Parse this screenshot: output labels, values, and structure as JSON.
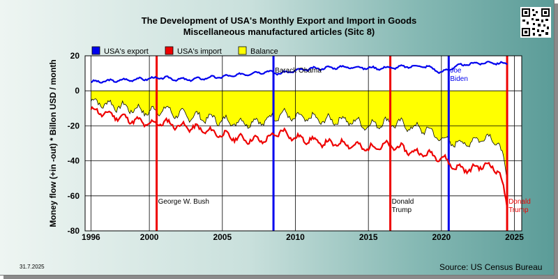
{
  "page": {
    "title_line1": "The Development of USA's Monthly Export and Import in Goods",
    "title_line2": "Miscellaneous manufactured articles (Sitc 8)",
    "date_stamp": "31.7.2025",
    "source": "Source: US Census Bureau",
    "qr_icon": "qr-code-icon"
  },
  "chart_data": {
    "type": "line",
    "ylabel": "Money flow (+in -out) * Billon USD / month",
    "xlabel": "",
    "xlim": [
      1995.6,
      2025.5
    ],
    "ylim": [
      -80,
      20
    ],
    "y_ticks": [
      20,
      0,
      -20,
      -40,
      -60,
      -80
    ],
    "x_ticks": [
      1996,
      2000,
      2005,
      2010,
      2015,
      2020,
      2025
    ],
    "grid": true,
    "legend_position": "top-left",
    "legend": [
      {
        "label": "USA's export",
        "color": "#0000ee"
      },
      {
        "label": "USA's import",
        "color": "#ee0000"
      },
      {
        "label": "Balance",
        "color": "#ffff00"
      }
    ],
    "events": [
      {
        "x": 2000.5,
        "label": "George W. Bush",
        "color": "#ee0000",
        "text_color": "#000000"
      },
      {
        "x": 2008.5,
        "label": "Barack Obama",
        "color": "#0000ee",
        "text_color": "#000000"
      },
      {
        "x": 2016.5,
        "label": "Donald Trump",
        "color": "#ee0000",
        "text_color": "#000000"
      },
      {
        "x": 2020.5,
        "label": "Joe Biden",
        "color": "#0000ee",
        "text_color": "#0000ee"
      },
      {
        "x": 2024.5,
        "label": "Donald Trump",
        "color": "#ee0000",
        "text_color": "#ee0000"
      }
    ],
    "series": [
      {
        "name": "USA's export",
        "color": "#0000ee",
        "x": [
          1996,
          1997,
          1998,
          1999,
          2000,
          2001,
          2002,
          2003,
          2004,
          2005,
          2006,
          2007,
          2008,
          2009,
          2010,
          2011,
          2012,
          2013,
          2014,
          2015,
          2016,
          2017,
          2018,
          2019,
          2020,
          2021,
          2022,
          2023,
          2024,
          2024.5
        ],
        "values": [
          5,
          5.5,
          6,
          6.5,
          7,
          7.5,
          6.5,
          6.5,
          7.5,
          8,
          9,
          10,
          11,
          10,
          11.5,
          12.5,
          13,
          13.5,
          13.5,
          13,
          13,
          13.5,
          14,
          14,
          10.5,
          14,
          15.5,
          16,
          16,
          15
        ]
      },
      {
        "name": "USA's import",
        "color": "#ee0000",
        "x": [
          1996,
          1997,
          1998,
          1999,
          2000,
          2001,
          2002,
          2003,
          2004,
          2005,
          2006,
          2007,
          2008,
          2009,
          2010,
          2011,
          2012,
          2013,
          2014,
          2015,
          2016,
          2017,
          2018,
          2019,
          2020,
          2021,
          2022,
          2023,
          2024,
          2024.5
        ],
        "values": [
          -11,
          -13,
          -15,
          -17,
          -19,
          -18,
          -20,
          -21,
          -23,
          -25,
          -27,
          -28,
          -28,
          -23,
          -27,
          -28,
          -30,
          -30,
          -31,
          -33,
          -31,
          -32,
          -35,
          -36,
          -38,
          -44,
          -45,
          -42,
          -46,
          -67
        ]
      },
      {
        "name": "Balance",
        "color": "#ffff00",
        "x": [
          1996,
          1997,
          1998,
          1999,
          2000,
          2001,
          2002,
          2003,
          2004,
          2005,
          2006,
          2007,
          2008,
          2009,
          2010,
          2011,
          2012,
          2013,
          2014,
          2015,
          2016,
          2017,
          2018,
          2019,
          2020,
          2021,
          2022,
          2023,
          2024,
          2024.5
        ],
        "values": [
          -6,
          -7.5,
          -9,
          -10.5,
          -12,
          -10.5,
          -13.5,
          -14.5,
          -15.5,
          -17,
          -18,
          -18,
          -17,
          -13,
          -15.5,
          -15.5,
          -17,
          -16.5,
          -17.5,
          -20,
          -18,
          -18.5,
          -21,
          -22,
          -27.5,
          -30,
          -29.5,
          -26,
          -30,
          -52
        ]
      }
    ]
  }
}
